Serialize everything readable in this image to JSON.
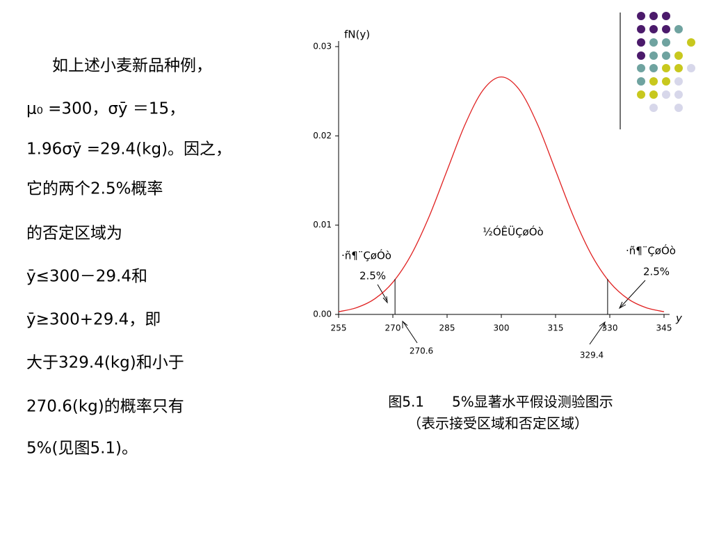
{
  "text_lines": [
    "如上述小麦新品种例，",
    "μ₀ =300，σȳ ＝15，",
    "1.96σȳ =29.4(kg)。因之，",
    "它的两个2.5%概率",
    "的否定区域为",
    "ȳ≤300－29.4和",
    "ȳ≥300+29.4，即",
    "大于329.4(kg)和小于",
    "270.6(kg)的概率只有",
    "5%(见图5.1)。"
  ],
  "chart_data": {
    "type": "line",
    "y_label": "fN(y)",
    "x_label": "y",
    "x": [
      255,
      260,
      265,
      270,
      275,
      280,
      285,
      290,
      295,
      300,
      305,
      310,
      315,
      320,
      325,
      330,
      335,
      340,
      345
    ],
    "series": [
      {
        "color": "#e02020",
        "values": [
          0.0003,
          0.00076,
          0.00175,
          0.0036,
          0.00663,
          0.01093,
          0.01613,
          0.0213,
          0.02516,
          0.0266,
          0.02516,
          0.0213,
          0.01613,
          0.01093,
          0.00663,
          0.0036,
          0.00175,
          0.00076,
          0.0003
        ]
      }
    ],
    "xlim": [
      255,
      345
    ],
    "xticks": [
      255,
      270,
      285,
      300,
      315,
      330,
      345
    ],
    "ylim": [
      0,
      0.03
    ],
    "yticks": [
      {
        "value": 0,
        "label": "0.00"
      },
      {
        "value": 0.01,
        "label": "0.01"
      },
      {
        "value": 0.02,
        "label": "0.02"
      },
      {
        "value": 0.03,
        "label": "0.03"
      }
    ],
    "cutoffs": [
      270.6,
      329.4
    ],
    "cutoff_labels": [
      "270.6",
      "329.4"
    ],
    "annotations": {
      "left_region": "·ñ¶¨ÇøÓò",
      "left_pct": "2.5%",
      "middle_region": "½ÓÊÜÇøÓò",
      "right_region": "·ñ¶¨ÇøÓò",
      "right_pct": "2.5%"
    },
    "caption": [
      "图5.1　　5%显著水平假设测验图示",
      "（表示接受区域和否定区域）"
    ]
  }
}
